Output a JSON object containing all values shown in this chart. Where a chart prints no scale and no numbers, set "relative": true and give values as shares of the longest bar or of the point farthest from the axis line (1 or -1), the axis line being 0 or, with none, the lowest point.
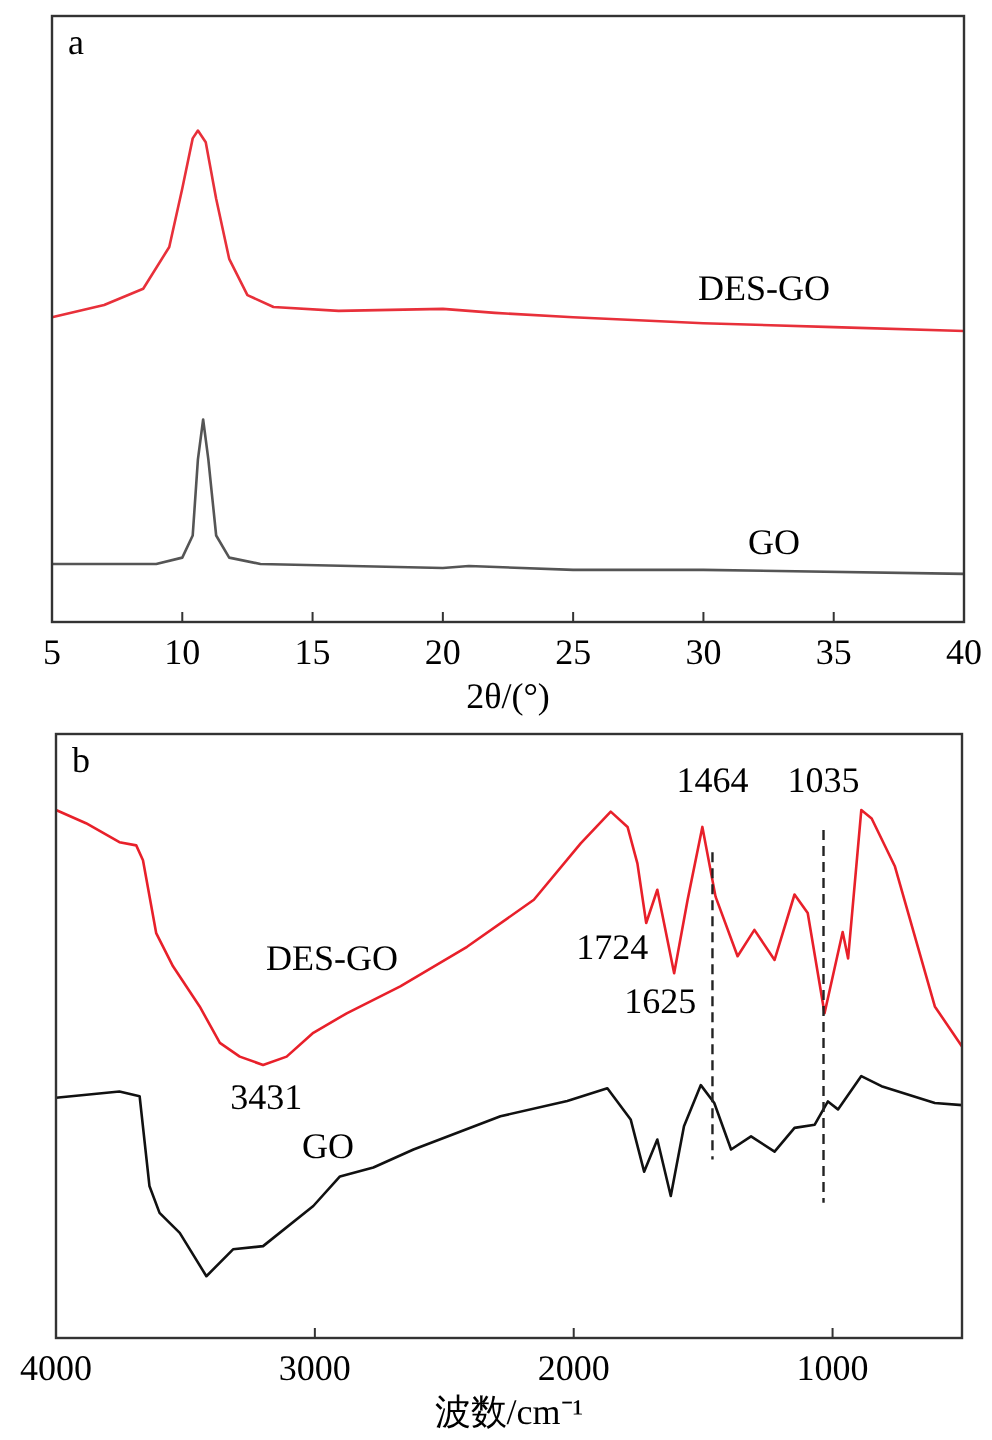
{
  "chart_data": [
    {
      "type": "line",
      "title": "a",
      "xlabel": "2θ/(°)",
      "relative": true,
      "xlim": [
        5,
        40
      ],
      "xticks": [
        5,
        10,
        15,
        20,
        25,
        30,
        35,
        40
      ],
      "series": [
        {
          "name": "DES-GO",
          "color": "#e8303a",
          "x": [
            5,
            7,
            8.5,
            9.5,
            10,
            10.4,
            10.6,
            10.9,
            11.3,
            11.8,
            12.5,
            13.5,
            16,
            20,
            22,
            25,
            30,
            35,
            40
          ],
          "values": [
            0.62,
            0.645,
            0.678,
            0.763,
            0.882,
            0.984,
            1,
            0.976,
            0.861,
            0.739,
            0.665,
            0.641,
            0.633,
            0.637,
            0.629,
            0.62,
            0.608,
            0.6,
            0.592
          ]
        },
        {
          "name": "GO",
          "color": "#555555",
          "x": [
            5,
            9,
            10,
            10.4,
            10.6,
            10.8,
            11.0,
            11.3,
            11.8,
            13,
            20,
            21,
            25,
            30,
            40
          ],
          "values": [
            0.118,
            0.118,
            0.131,
            0.176,
            0.331,
            0.412,
            0.331,
            0.176,
            0.131,
            0.118,
            0.11,
            0.114,
            0.106,
            0.106,
            0.098
          ]
        }
      ]
    },
    {
      "type": "line",
      "title": "b",
      "xlabel": "波数/cm⁻¹",
      "relative": true,
      "xlim": [
        4000,
        500
      ],
      "xticks": [
        4000,
        3000,
        2000,
        1000
      ],
      "series": [
        {
          "name": "DES-GO",
          "color": "#e8202a",
          "x": [
            4000,
            3884,
            3755,
            3690,
            3664,
            3613,
            3548,
            3445,
            3367,
            3290,
            3200,
            3109,
            3006,
            2877,
            2670,
            2412,
            2154,
            1973,
            1857,
            1792,
            1754,
            1720,
            1677,
            1612,
            1560,
            1503,
            1452,
            1367,
            1302,
            1224,
            1147,
            1096,
            1031,
            961,
            940,
            889,
            849,
            759,
            605,
            500
          ],
          "values": [
            1.0,
            0.975,
            0.939,
            0.933,
            0.905,
            0.767,
            0.704,
            0.628,
            0.559,
            0.533,
            0.517,
            0.533,
            0.578,
            0.615,
            0.666,
            0.741,
            0.83,
            0.937,
            0.997,
            0.968,
            0.899,
            0.786,
            0.849,
            0.691,
            0.83,
            0.968,
            0.836,
            0.723,
            0.773,
            0.716,
            0.84,
            0.805,
            0.615,
            0.769,
            0.719,
            1.0,
            0.984,
            0.893,
            0.628,
            0.552
          ]
        },
        {
          "name": "GO",
          "color": "#111111",
          "x": [
            4000,
            3755,
            3677,
            3639,
            3600,
            3522,
            3419,
            3316,
            3200,
            3006,
            2903,
            2774,
            2619,
            2283,
            2025,
            1870,
            1780,
            1728,
            1677,
            1625,
            1574,
            1509,
            1457,
            1392,
            1315,
            1224,
            1147,
            1069,
            1018,
            979,
            889,
            811,
            605,
            500
          ],
          "values": [
            0.455,
            0.467,
            0.458,
            0.288,
            0.237,
            0.199,
            0.117,
            0.168,
            0.174,
            0.25,
            0.306,
            0.323,
            0.357,
            0.42,
            0.449,
            0.473,
            0.414,
            0.315,
            0.376,
            0.269,
            0.401,
            0.479,
            0.445,
            0.357,
            0.382,
            0.353,
            0.398,
            0.404,
            0.448,
            0.433,
            0.496,
            0.477,
            0.445,
            0.441
          ]
        }
      ],
      "annotations": [
        {
          "text": "3431",
          "x": 3250,
          "y": 0.517
        },
        {
          "text": "1724",
          "x": 1720,
          "y": 0.786
        },
        {
          "text": "1625",
          "x": 1612,
          "y": 0.691
        }
      ],
      "ref_lines": [
        {
          "axis": "x",
          "value": 1464,
          "label": "1464",
          "color": "#222222",
          "line_style": "dashed"
        },
        {
          "axis": "x",
          "value": 1035,
          "label": "1035",
          "color": "#222222",
          "line_style": "dashed"
        }
      ]
    }
  ]
}
